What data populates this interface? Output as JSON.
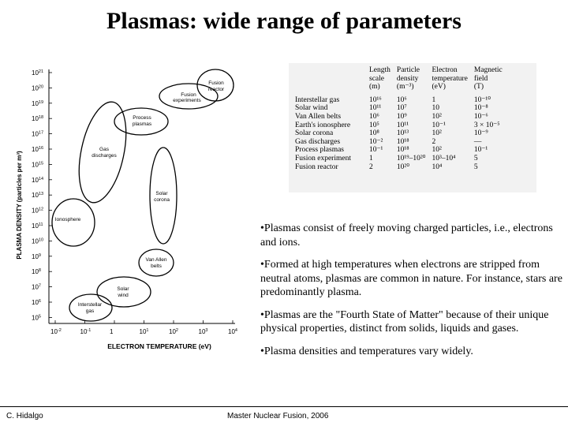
{
  "title": "Plasmas: wide range of parameters",
  "chart": {
    "ylabel": "PLASMA DENSITY (particles per m³)",
    "xlabel": "ELECTRON TEMPERATURE (eV)",
    "y_ticks": [
      {
        "base": "10",
        "exp": "21"
      },
      {
        "base": "10",
        "exp": "20"
      },
      {
        "base": "10",
        "exp": "19"
      },
      {
        "base": "10",
        "exp": "18"
      },
      {
        "base": "10",
        "exp": "17"
      },
      {
        "base": "10",
        "exp": "16"
      },
      {
        "base": "10",
        "exp": "15"
      },
      {
        "base": "10",
        "exp": "14"
      },
      {
        "base": "10",
        "exp": "13"
      },
      {
        "base": "10",
        "exp": "12"
      },
      {
        "base": "10",
        "exp": "11"
      },
      {
        "base": "10",
        "exp": "10"
      },
      {
        "base": "10",
        "exp": "9"
      },
      {
        "base": "10",
        "exp": "8"
      },
      {
        "base": "10",
        "exp": "7"
      },
      {
        "base": "10",
        "exp": "6"
      },
      {
        "base": "10",
        "exp": "5"
      }
    ],
    "x_ticks": [
      {
        "base": "10",
        "exp": "-2"
      },
      {
        "base": "10",
        "exp": "-1"
      },
      {
        "base": "1",
        "exp": ""
      },
      {
        "base": "10",
        "exp": "1"
      },
      {
        "base": "10",
        "exp": "2"
      },
      {
        "base": "10",
        "exp": "3"
      },
      {
        "base": "10",
        "exp": "4"
      }
    ],
    "regions": [
      {
        "name": "fusion-reactor",
        "label": [
          "Fusion",
          "reactor"
        ]
      },
      {
        "name": "fusion-experiments",
        "label": [
          "Fusion",
          "experiments"
        ]
      },
      {
        "name": "process-plasmas",
        "label": [
          "Process",
          "plasmas"
        ]
      },
      {
        "name": "gas-discharges",
        "label": [
          "Gas",
          "discharges"
        ]
      },
      {
        "name": "solar-corona",
        "label": [
          "Solar",
          "corona"
        ]
      },
      {
        "name": "ionosphere",
        "label": [
          "Ionosphere"
        ]
      },
      {
        "name": "van-allen-belts",
        "label": [
          "Van Allen",
          "belts"
        ]
      },
      {
        "name": "solar-wind",
        "label": [
          "Solar",
          "wind"
        ]
      },
      {
        "name": "interstellar-gas",
        "label": [
          "Interstellar",
          "gas"
        ]
      }
    ]
  },
  "table": {
    "headers": [
      [
        "",
        ""
      ],
      [
        "Length",
        "scale",
        "(m)"
      ],
      [
        "Particle",
        "density",
        "(m⁻³)"
      ],
      [
        "Electron",
        "temperature",
        "(eV)"
      ],
      [
        "Magnetic",
        "field",
        "(T)"
      ]
    ],
    "rows": [
      [
        "Interstellar gas",
        "10¹⁶",
        "10⁶",
        "1",
        "10⁻¹⁰"
      ],
      [
        "Solar wind",
        "10¹¹",
        "10⁷",
        "10",
        "10⁻⁸"
      ],
      [
        "Van Allen belts",
        "10⁶",
        "10⁹",
        "10²",
        "10⁻⁶"
      ],
      [
        "Earth's ionosphere",
        "10⁵",
        "10¹¹",
        "10⁻¹",
        "3 × 10⁻⁵"
      ],
      [
        "Solar corona",
        "10⁸",
        "10¹³",
        "10²",
        "10⁻⁹"
      ],
      [
        "Gas discharges",
        "10⁻²",
        "10¹⁸",
        "2",
        "—"
      ],
      [
        "Process plasmas",
        "10⁻¹",
        "10¹⁸",
        "10²",
        "10⁻¹"
      ],
      [
        "Fusion experiment",
        "1",
        "10¹⁹–10²⁰",
        "10³–10⁴",
        "5"
      ],
      [
        "Fusion reactor",
        "2",
        "10²⁰",
        "10⁴",
        "5"
      ]
    ]
  },
  "bullets": [
    "•Plasmas consist of freely moving charged particles, i.e., electrons and ions.",
    "•Formed at high temperatures when electrons are stripped from neutral atoms, plasmas are common in nature. For instance, stars are predominantly plasma.",
    "•Plasmas are the \"Fourth State of Matter\" because of their unique physical properties, distinct from solids, liquids and gases.",
    "•Plasma densities and temperatures vary widely."
  ],
  "footer": {
    "left": "C. Hidalgo",
    "center": "Master Nuclear Fusion, 2006"
  }
}
